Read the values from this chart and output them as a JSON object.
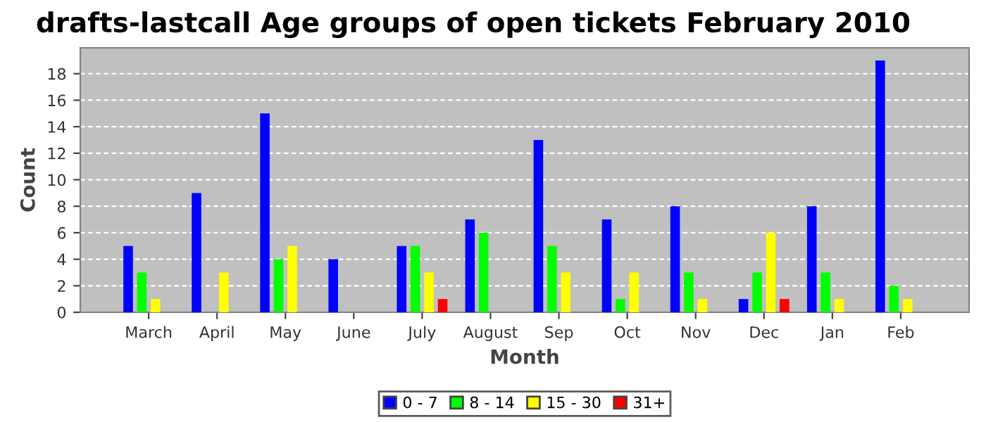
{
  "chart_data": {
    "type": "bar",
    "title": "drafts-lastcall Age groups of open tickets February 2010",
    "xlabel": "Month",
    "ylabel": "Count",
    "categories": [
      "March",
      "April",
      "May",
      "June",
      "July",
      "August",
      "Sep",
      "Oct",
      "Nov",
      "Dec",
      "Jan",
      "Feb"
    ],
    "series": [
      {
        "name": "0 - 7",
        "color": "#0000ff",
        "values": [
          5,
          9,
          15,
          4,
          5,
          7,
          13,
          7,
          8,
          1,
          8,
          19
        ]
      },
      {
        "name": "8 - 14",
        "color": "#00ff00",
        "values": [
          3,
          0,
          4,
          0,
          5,
          6,
          5,
          1,
          3,
          3,
          3,
          2
        ]
      },
      {
        "name": "15 - 30",
        "color": "#ffff00",
        "values": [
          1,
          3,
          5,
          0,
          3,
          0,
          3,
          3,
          1,
          6,
          1,
          1
        ]
      },
      {
        "name": "31+",
        "color": "#ff0000",
        "values": [
          0,
          0,
          0,
          0,
          1,
          0,
          0,
          0,
          0,
          1,
          0,
          0
        ]
      }
    ],
    "ylim": [
      0,
      19.95
    ],
    "yticks": [
      0,
      2,
      4,
      6,
      8,
      10,
      12,
      14,
      16,
      18
    ],
    "grid": "y",
    "legend": "bottom"
  }
}
